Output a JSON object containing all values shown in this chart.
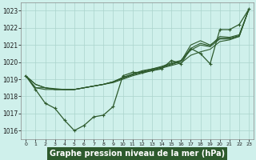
{
  "background_color": "#cff0eb",
  "grid_color": "#aad4cc",
  "line_color": "#2d5a2d",
  "xlabel": "Graphe pression niveau de la mer (hPa)",
  "xlim": [
    -0.5,
    23.5
  ],
  "ylim": [
    1015.5,
    1023.5
  ],
  "yticks": [
    1016,
    1017,
    1018,
    1019,
    1020,
    1021,
    1022,
    1023
  ],
  "xticks": [
    0,
    1,
    2,
    3,
    4,
    5,
    6,
    7,
    8,
    9,
    10,
    11,
    12,
    13,
    14,
    15,
    16,
    17,
    18,
    19,
    20,
    21,
    22,
    23
  ],
  "x": [
    0,
    1,
    2,
    3,
    4,
    5,
    6,
    7,
    8,
    9,
    10,
    11,
    12,
    13,
    14,
    15,
    16,
    17,
    18,
    19,
    20,
    21,
    22,
    23
  ],
  "series_main": [
    1019.2,
    1018.4,
    1017.6,
    1017.3,
    1016.6,
    1016.0,
    1016.3,
    1016.8,
    1016.9,
    1017.4,
    1019.2,
    1019.4,
    1019.4,
    1019.5,
    1019.6,
    1020.1,
    1019.9,
    1020.8,
    1020.5,
    1019.9,
    1021.9,
    1021.9,
    1022.2,
    1023.1
  ],
  "series_linear1": [
    1019.2,
    1018.7,
    1018.5,
    1018.4,
    1018.4,
    1018.4,
    1018.5,
    1018.6,
    1018.7,
    1018.8,
    1019.0,
    1019.2,
    1019.35,
    1019.5,
    1019.65,
    1019.8,
    1019.95,
    1020.4,
    1020.6,
    1020.75,
    1021.2,
    1021.3,
    1021.5,
    1023.1
  ],
  "series_linear2": [
    1019.2,
    1018.7,
    1018.5,
    1018.4,
    1018.4,
    1018.4,
    1018.5,
    1018.6,
    1018.7,
    1018.85,
    1019.05,
    1019.25,
    1019.4,
    1019.55,
    1019.7,
    1019.85,
    1020.05,
    1020.7,
    1021.0,
    1020.9,
    1021.35,
    1021.35,
    1021.5,
    1023.1
  ],
  "series_linear3": [
    1019.2,
    1018.5,
    1018.5,
    1018.45,
    1018.4,
    1018.4,
    1018.5,
    1018.6,
    1018.7,
    1018.85,
    1019.1,
    1019.3,
    1019.5,
    1019.6,
    1019.7,
    1019.9,
    1020.05,
    1021.0,
    1021.25,
    1021.0,
    1021.4,
    1021.4,
    1021.55,
    1023.1
  ],
  "series_linear4": [
    1019.2,
    1018.5,
    1018.4,
    1018.4,
    1018.4,
    1018.4,
    1018.5,
    1018.6,
    1018.7,
    1018.85,
    1019.1,
    1019.3,
    1019.45,
    1019.6,
    1019.75,
    1019.95,
    1020.1,
    1020.8,
    1021.1,
    1020.95,
    1021.5,
    1021.45,
    1021.6,
    1023.1
  ]
}
